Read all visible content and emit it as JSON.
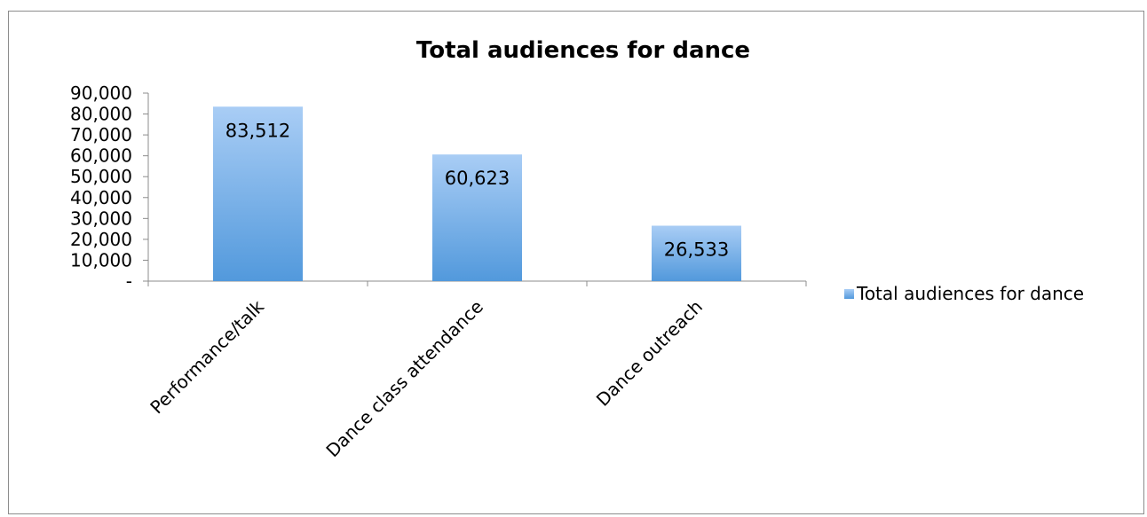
{
  "chart_data": {
    "type": "bar",
    "title": "Total audiences for dance",
    "categories": [
      "Performance/talk",
      "Dance class attendance",
      "Dance outreach"
    ],
    "series": [
      {
        "name": "Total audiences for dance",
        "values": [
          83512,
          60623,
          26533
        ],
        "data_labels": [
          "83,512",
          "60,623",
          "26,533"
        ],
        "color": "#7fb2ea"
      }
    ],
    "xlabel": "",
    "ylabel": "",
    "ylim": [
      0,
      90000
    ],
    "y_ticks": [
      {
        "value": 0,
        "label": "-"
      },
      {
        "value": 10000,
        "label": "10,000"
      },
      {
        "value": 20000,
        "label": "20,000"
      },
      {
        "value": 30000,
        "label": "30,000"
      },
      {
        "value": 40000,
        "label": "40,000"
      },
      {
        "value": 50000,
        "label": "50,000"
      },
      {
        "value": 60000,
        "label": "60,000"
      },
      {
        "value": 70000,
        "label": "70,000"
      },
      {
        "value": 80000,
        "label": "80,000"
      },
      {
        "value": 90000,
        "label": "90,000"
      }
    ],
    "grid": false,
    "legend_position": "right",
    "colors": {
      "bar_top": "#a9cdf5",
      "bar_bottom": "#5299dc",
      "axis": "#8c8c8c",
      "border": "#8c8c8c"
    }
  }
}
